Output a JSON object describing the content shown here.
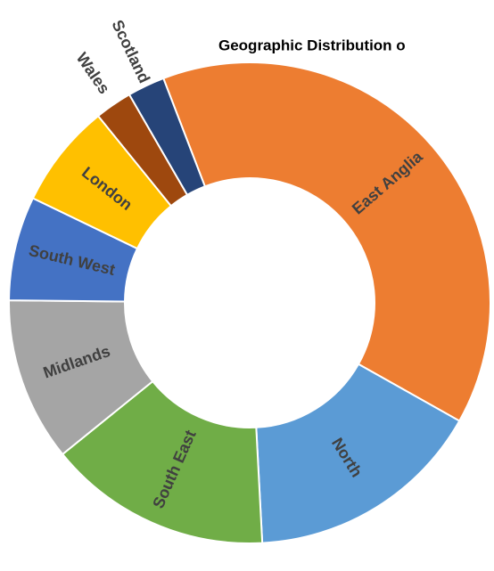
{
  "chart_data": {
    "type": "donut",
    "title": "Geographic Distribution o",
    "categories": [
      "East Anglia",
      "North",
      "South East",
      "Midlands",
      "South West",
      "London",
      "Wales",
      "Scotland"
    ],
    "values": [
      39,
      16,
      15,
      11,
      7,
      7,
      2.5,
      2.5
    ],
    "colors": [
      "#ed7d31",
      "#5b9bd5",
      "#70ad47",
      "#a5a5a5",
      "#4472c4",
      "#ffc000",
      "#9e480e",
      "#264478"
    ]
  }
}
